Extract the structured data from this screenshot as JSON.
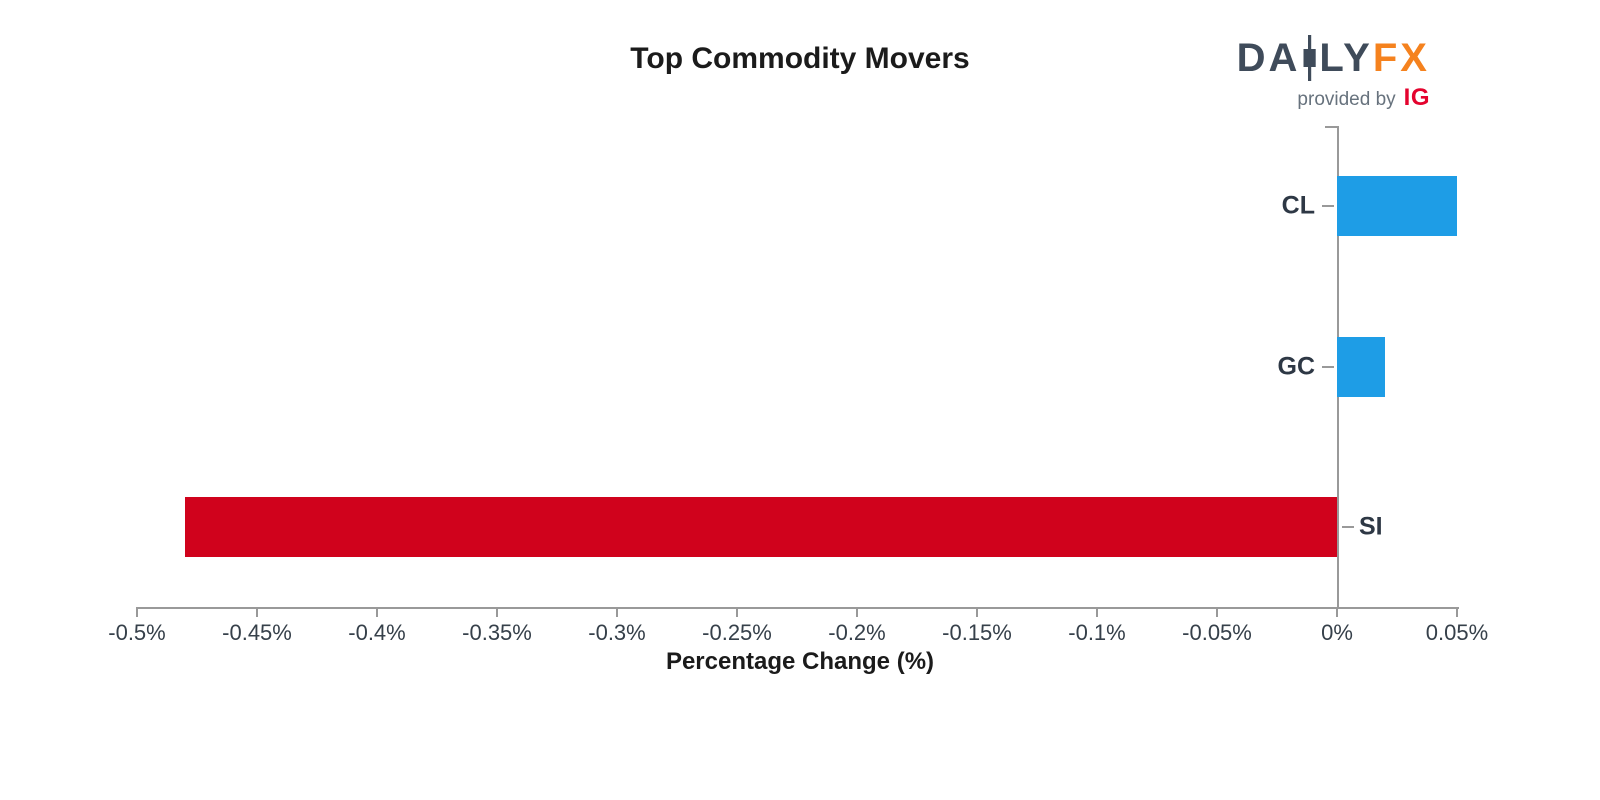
{
  "logo": {
    "part1": "DA",
    "part2": "LY",
    "part3": "FX",
    "provided_by": "provided by",
    "ig": "IG",
    "colors": {
      "dark": "#3F4B5A",
      "accent_orange": "#F5821E",
      "provided_gray": "#67727D",
      "ig_red": "#E4032E"
    }
  },
  "chart_data": {
    "type": "bar",
    "orientation": "horizontal",
    "title": "Top Commodity Movers",
    "xlabel": "Percentage Change (%)",
    "categories": [
      "CL",
      "GC",
      "SI"
    ],
    "values": [
      0.05,
      0.02,
      -0.48
    ],
    "value_unit": "%",
    "xlim": [
      -0.5,
      0.05
    ],
    "xticks": [
      {
        "value": -0.5,
        "label": "-0.5%"
      },
      {
        "value": -0.45,
        "label": "-0.45%"
      },
      {
        "value": -0.4,
        "label": "-0.4%"
      },
      {
        "value": -0.35,
        "label": "-0.35%"
      },
      {
        "value": -0.3,
        "label": "-0.3%"
      },
      {
        "value": -0.25,
        "label": "-0.25%"
      },
      {
        "value": -0.2,
        "label": "-0.2%"
      },
      {
        "value": -0.15,
        "label": "-0.15%"
      },
      {
        "value": -0.1,
        "label": "-0.1%"
      },
      {
        "value": -0.05,
        "label": "-0.05%"
      },
      {
        "value": 0,
        "label": "0%"
      },
      {
        "value": 0.05,
        "label": "0.05%"
      }
    ],
    "grid": false,
    "legend": null,
    "colors": {
      "positive": "#1E9DE6",
      "negative": "#D0021C",
      "axis": "#999999",
      "tick_label": "#36404A",
      "category_label": "#2E3845"
    }
  }
}
